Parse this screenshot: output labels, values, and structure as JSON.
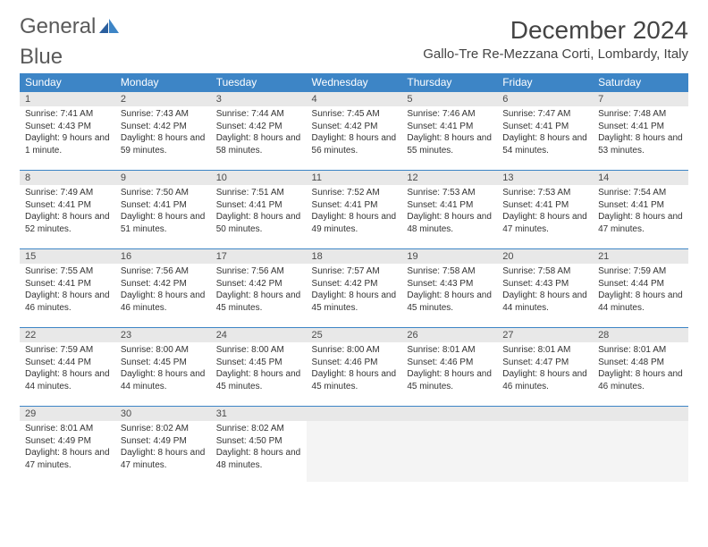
{
  "logo": {
    "word1": "General",
    "word2": "Blue"
  },
  "header": {
    "month_title": "December 2024",
    "location": "Gallo-Tre Re-Mezzana Corti, Lombardy, Italy"
  },
  "colors": {
    "header_bg": "#3d85c6",
    "header_fg": "#ffffff",
    "daynum_bg": "#e8e8e8",
    "border": "#3d85c6",
    "logo_gray": "#5a5a5a",
    "logo_blue": "#3d85c6",
    "text": "#333333",
    "empty_body": "#f4f4f4"
  },
  "typography": {
    "month_title_fontsize": 28,
    "location_fontsize": 15,
    "dayheader_fontsize": 12,
    "daynum_fontsize": 11,
    "body_fontsize": 10,
    "logo_fontsize": 24
  },
  "day_headers": [
    "Sunday",
    "Monday",
    "Tuesday",
    "Wednesday",
    "Thursday",
    "Friday",
    "Saturday"
  ],
  "weeks": [
    [
      {
        "num": "1",
        "sunrise": "Sunrise: 7:41 AM",
        "sunset": "Sunset: 4:43 PM",
        "daylight": "Daylight: 9 hours and 1 minute."
      },
      {
        "num": "2",
        "sunrise": "Sunrise: 7:43 AM",
        "sunset": "Sunset: 4:42 PM",
        "daylight": "Daylight: 8 hours and 59 minutes."
      },
      {
        "num": "3",
        "sunrise": "Sunrise: 7:44 AM",
        "sunset": "Sunset: 4:42 PM",
        "daylight": "Daylight: 8 hours and 58 minutes."
      },
      {
        "num": "4",
        "sunrise": "Sunrise: 7:45 AM",
        "sunset": "Sunset: 4:42 PM",
        "daylight": "Daylight: 8 hours and 56 minutes."
      },
      {
        "num": "5",
        "sunrise": "Sunrise: 7:46 AM",
        "sunset": "Sunset: 4:41 PM",
        "daylight": "Daylight: 8 hours and 55 minutes."
      },
      {
        "num": "6",
        "sunrise": "Sunrise: 7:47 AM",
        "sunset": "Sunset: 4:41 PM",
        "daylight": "Daylight: 8 hours and 54 minutes."
      },
      {
        "num": "7",
        "sunrise": "Sunrise: 7:48 AM",
        "sunset": "Sunset: 4:41 PM",
        "daylight": "Daylight: 8 hours and 53 minutes."
      }
    ],
    [
      {
        "num": "8",
        "sunrise": "Sunrise: 7:49 AM",
        "sunset": "Sunset: 4:41 PM",
        "daylight": "Daylight: 8 hours and 52 minutes."
      },
      {
        "num": "9",
        "sunrise": "Sunrise: 7:50 AM",
        "sunset": "Sunset: 4:41 PM",
        "daylight": "Daylight: 8 hours and 51 minutes."
      },
      {
        "num": "10",
        "sunrise": "Sunrise: 7:51 AM",
        "sunset": "Sunset: 4:41 PM",
        "daylight": "Daylight: 8 hours and 50 minutes."
      },
      {
        "num": "11",
        "sunrise": "Sunrise: 7:52 AM",
        "sunset": "Sunset: 4:41 PM",
        "daylight": "Daylight: 8 hours and 49 minutes."
      },
      {
        "num": "12",
        "sunrise": "Sunrise: 7:53 AM",
        "sunset": "Sunset: 4:41 PM",
        "daylight": "Daylight: 8 hours and 48 minutes."
      },
      {
        "num": "13",
        "sunrise": "Sunrise: 7:53 AM",
        "sunset": "Sunset: 4:41 PM",
        "daylight": "Daylight: 8 hours and 47 minutes."
      },
      {
        "num": "14",
        "sunrise": "Sunrise: 7:54 AM",
        "sunset": "Sunset: 4:41 PM",
        "daylight": "Daylight: 8 hours and 47 minutes."
      }
    ],
    [
      {
        "num": "15",
        "sunrise": "Sunrise: 7:55 AM",
        "sunset": "Sunset: 4:41 PM",
        "daylight": "Daylight: 8 hours and 46 minutes."
      },
      {
        "num": "16",
        "sunrise": "Sunrise: 7:56 AM",
        "sunset": "Sunset: 4:42 PM",
        "daylight": "Daylight: 8 hours and 46 minutes."
      },
      {
        "num": "17",
        "sunrise": "Sunrise: 7:56 AM",
        "sunset": "Sunset: 4:42 PM",
        "daylight": "Daylight: 8 hours and 45 minutes."
      },
      {
        "num": "18",
        "sunrise": "Sunrise: 7:57 AM",
        "sunset": "Sunset: 4:42 PM",
        "daylight": "Daylight: 8 hours and 45 minutes."
      },
      {
        "num": "19",
        "sunrise": "Sunrise: 7:58 AM",
        "sunset": "Sunset: 4:43 PM",
        "daylight": "Daylight: 8 hours and 45 minutes."
      },
      {
        "num": "20",
        "sunrise": "Sunrise: 7:58 AM",
        "sunset": "Sunset: 4:43 PM",
        "daylight": "Daylight: 8 hours and 44 minutes."
      },
      {
        "num": "21",
        "sunrise": "Sunrise: 7:59 AM",
        "sunset": "Sunset: 4:44 PM",
        "daylight": "Daylight: 8 hours and 44 minutes."
      }
    ],
    [
      {
        "num": "22",
        "sunrise": "Sunrise: 7:59 AM",
        "sunset": "Sunset: 4:44 PM",
        "daylight": "Daylight: 8 hours and 44 minutes."
      },
      {
        "num": "23",
        "sunrise": "Sunrise: 8:00 AM",
        "sunset": "Sunset: 4:45 PM",
        "daylight": "Daylight: 8 hours and 44 minutes."
      },
      {
        "num": "24",
        "sunrise": "Sunrise: 8:00 AM",
        "sunset": "Sunset: 4:45 PM",
        "daylight": "Daylight: 8 hours and 45 minutes."
      },
      {
        "num": "25",
        "sunrise": "Sunrise: 8:00 AM",
        "sunset": "Sunset: 4:46 PM",
        "daylight": "Daylight: 8 hours and 45 minutes."
      },
      {
        "num": "26",
        "sunrise": "Sunrise: 8:01 AM",
        "sunset": "Sunset: 4:46 PM",
        "daylight": "Daylight: 8 hours and 45 minutes."
      },
      {
        "num": "27",
        "sunrise": "Sunrise: 8:01 AM",
        "sunset": "Sunset: 4:47 PM",
        "daylight": "Daylight: 8 hours and 46 minutes."
      },
      {
        "num": "28",
        "sunrise": "Sunrise: 8:01 AM",
        "sunset": "Sunset: 4:48 PM",
        "daylight": "Daylight: 8 hours and 46 minutes."
      }
    ],
    [
      {
        "num": "29",
        "sunrise": "Sunrise: 8:01 AM",
        "sunset": "Sunset: 4:49 PM",
        "daylight": "Daylight: 8 hours and 47 minutes."
      },
      {
        "num": "30",
        "sunrise": "Sunrise: 8:02 AM",
        "sunset": "Sunset: 4:49 PM",
        "daylight": "Daylight: 8 hours and 47 minutes."
      },
      {
        "num": "31",
        "sunrise": "Sunrise: 8:02 AM",
        "sunset": "Sunset: 4:50 PM",
        "daylight": "Daylight: 8 hours and 48 minutes."
      },
      null,
      null,
      null,
      null
    ]
  ]
}
